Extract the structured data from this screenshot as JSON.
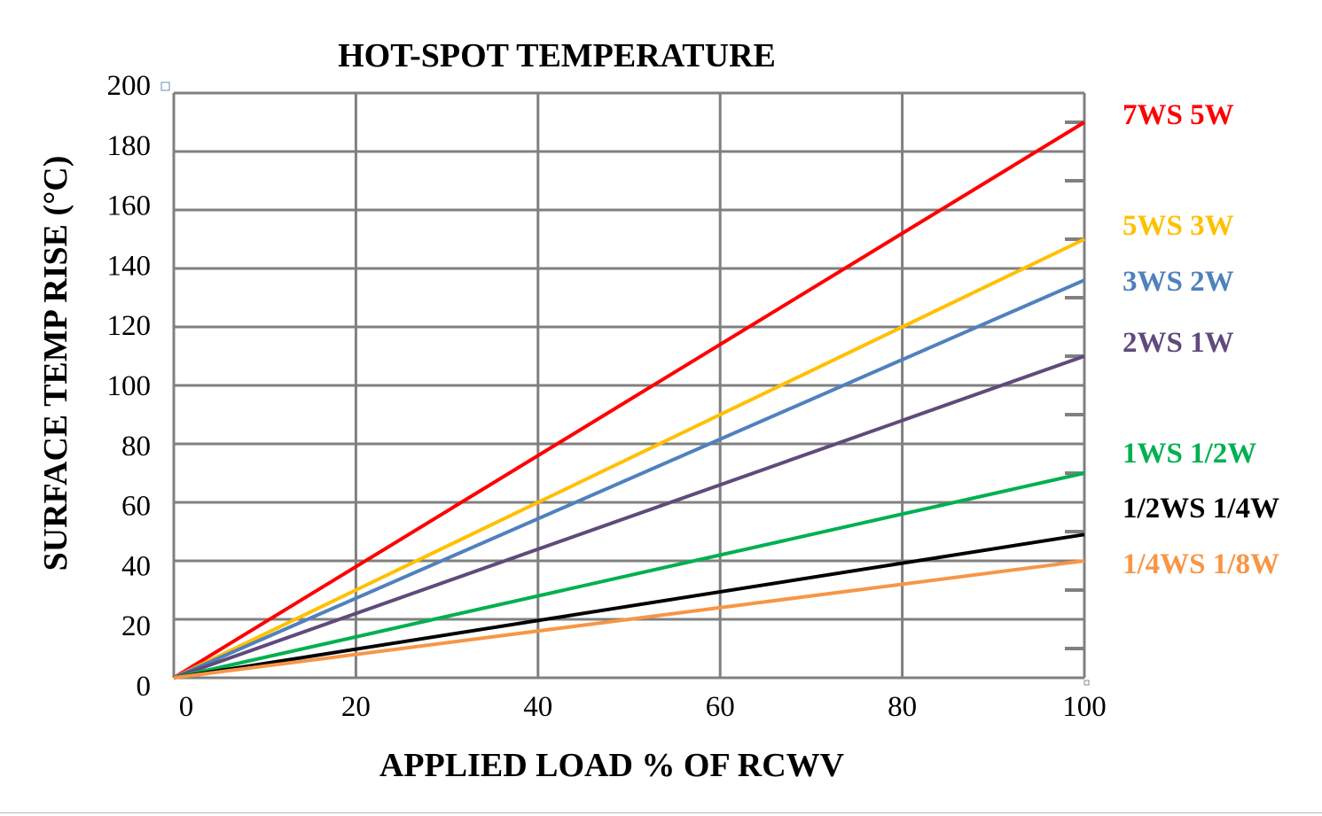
{
  "chart_data": {
    "type": "line",
    "title": "HOT-SPOT TEMPERATURE",
    "xlabel": "APPLIED LOAD % OF RCWV",
    "ylabel": "SURFACE TEMP RISE (°C)",
    "xlim": [
      0,
      100
    ],
    "ylim": [
      0,
      200
    ],
    "x_ticks": [
      "0",
      "20",
      "40",
      "60",
      "80",
      "100"
    ],
    "y_ticks": [
      "200",
      "180",
      "160",
      "140",
      "120",
      "100",
      "80",
      "60",
      "40",
      "20",
      "0"
    ],
    "grid": true,
    "legend": "right",
    "series": [
      {
        "name": "7WS 5W",
        "color": "#ff0000",
        "x": [
          0,
          100
        ],
        "y": [
          0,
          190
        ]
      },
      {
        "name": "5WS 3W",
        "color": "#ffc000",
        "x": [
          0,
          100
        ],
        "y": [
          0,
          150
        ]
      },
      {
        "name": "3WS 2W",
        "color": "#4f81bd",
        "x": [
          0,
          100
        ],
        "y": [
          0,
          136
        ]
      },
      {
        "name": "2WS 1W",
        "color": "#604a7b",
        "x": [
          0,
          100
        ],
        "y": [
          0,
          110
        ]
      },
      {
        "name": "1WS 1/2W",
        "color": "#00b050",
        "x": [
          0,
          100
        ],
        "y": [
          0,
          70
        ]
      },
      {
        "name": "1/2WS 1/4W",
        "color": "#000000",
        "x": [
          0,
          100
        ],
        "y": [
          0,
          49
        ]
      },
      {
        "name": "1/4WS 1/8W",
        "color": "#f79646",
        "x": [
          0,
          100
        ],
        "y": [
          0,
          40
        ]
      }
    ]
  }
}
